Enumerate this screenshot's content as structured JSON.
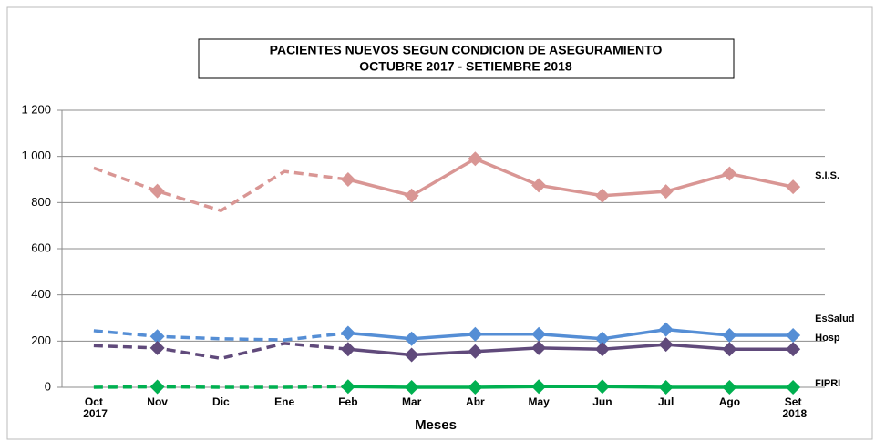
{
  "chart_data": {
    "type": "line",
    "title": "PACIENTES NUEVOS SEGUN CONDICION DE ASEGURAMIENTO",
    "subtitle": "OCTUBRE  2017 -  SETIEMBRE 2018",
    "x_label": "Meses",
    "categories": [
      "Oct 2017",
      "Nov",
      "Dic",
      "Ene",
      "Feb",
      "Mar",
      "Abr",
      "May",
      "Jun",
      "Jul",
      "Ago",
      "Set 2018"
    ],
    "series": [
      {
        "name": "S.I.S.",
        "color": "#d99694",
        "values": [
          950,
          850,
          765,
          935,
          900,
          830,
          990,
          875,
          830,
          848,
          925,
          868
        ]
      },
      {
        "name": "EsSalud",
        "color": "#558ed5",
        "values": [
          245,
          220,
          210,
          205,
          235,
          210,
          230,
          230,
          210,
          250,
          225,
          225
        ]
      },
      {
        "name": "Hosp",
        "color": "#604a7b",
        "values": [
          180,
          170,
          125,
          190,
          165,
          140,
          155,
          170,
          165,
          185,
          165,
          165
        ]
      },
      {
        "name": "FIPRI",
        "color": "#00b050",
        "values": [
          0,
          2,
          0,
          0,
          3,
          0,
          0,
          3,
          3,
          0,
          0,
          0
        ]
      }
    ],
    "ylim": [
      0,
      1200
    ],
    "yticks": [
      0,
      200,
      400,
      600,
      800,
      {
        "value": 1000,
        "label": "1 000"
      },
      {
        "value": 1200,
        "label": "1 200"
      }
    ],
    "grid": true
  }
}
